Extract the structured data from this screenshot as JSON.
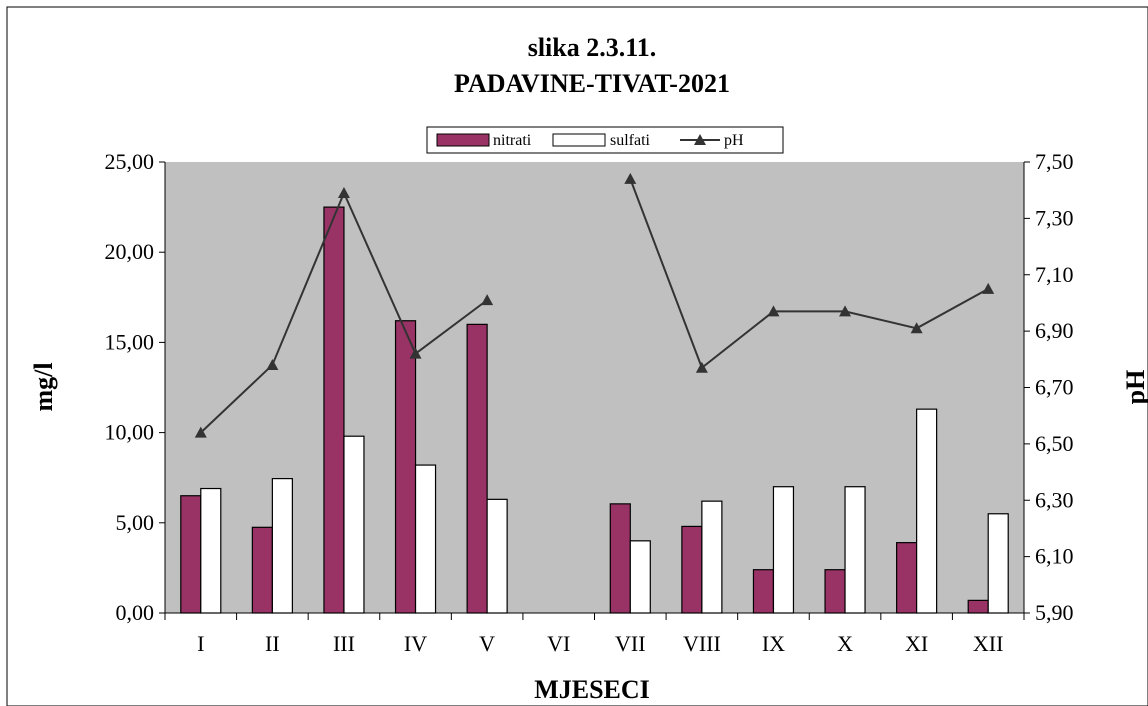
{
  "chart_data": {
    "type": "bar",
    "title": "slika 2.3.11.",
    "subtitle": "PADAVINE-TIVAT-2021",
    "xlabel": "MJESECI",
    "ylabel": "mg/l",
    "y2label": "pH",
    "categories": [
      "I",
      "II",
      "III",
      "IV",
      "V",
      "VI",
      "VII",
      "VIII",
      "IX",
      "X",
      "XI",
      "XII"
    ],
    "ylim": [
      0,
      25
    ],
    "y_ticks": [
      "0,00",
      "5,00",
      "10,00",
      "15,00",
      "20,00",
      "25,00"
    ],
    "y2lim": [
      5.9,
      7.5
    ],
    "y2_ticks": [
      "5,90",
      "6,10",
      "6,30",
      "6,50",
      "6,70",
      "6,90",
      "7,10",
      "7,30",
      "7,50"
    ],
    "grid": false,
    "legend_position": "top-center",
    "series": [
      {
        "name": "nitrati",
        "type": "bar",
        "color": "#993366",
        "values": [
          6.5,
          4.75,
          22.5,
          16.2,
          16.0,
          null,
          6.05,
          4.8,
          2.4,
          2.4,
          3.9,
          0.7
        ]
      },
      {
        "name": "sulfati",
        "type": "bar",
        "color": "#ffffff",
        "values": [
          6.9,
          7.45,
          9.8,
          8.2,
          6.3,
          null,
          4.0,
          6.2,
          7.0,
          7.0,
          11.3,
          5.5
        ]
      },
      {
        "name": "pH",
        "type": "line",
        "axis": "right",
        "color": "#333333",
        "values": [
          6.54,
          6.78,
          7.39,
          6.82,
          7.01,
          null,
          7.44,
          6.77,
          6.97,
          6.97,
          6.91,
          7.05
        ]
      }
    ],
    "plot_background": "#c0c0c0"
  }
}
